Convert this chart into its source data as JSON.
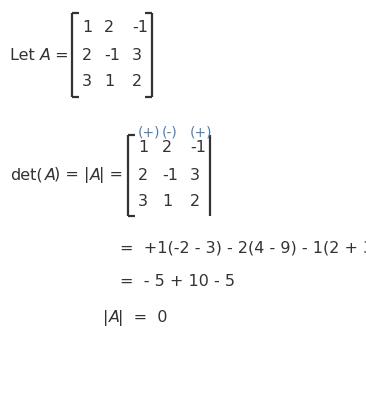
{
  "background_color": "#ffffff",
  "text_color": "#333333",
  "blue_color": "#4a7fb5",
  "matrix_rows": [
    [
      "1",
      "2",
      "-1"
    ],
    [
      "2",
      "-1",
      "3"
    ],
    [
      "3",
      "1",
      "2"
    ]
  ],
  "signs": [
    "(+)",
    "(-)",
    "(+)"
  ],
  "figw": 3.66,
  "figh": 4.13,
  "dpi": 100
}
